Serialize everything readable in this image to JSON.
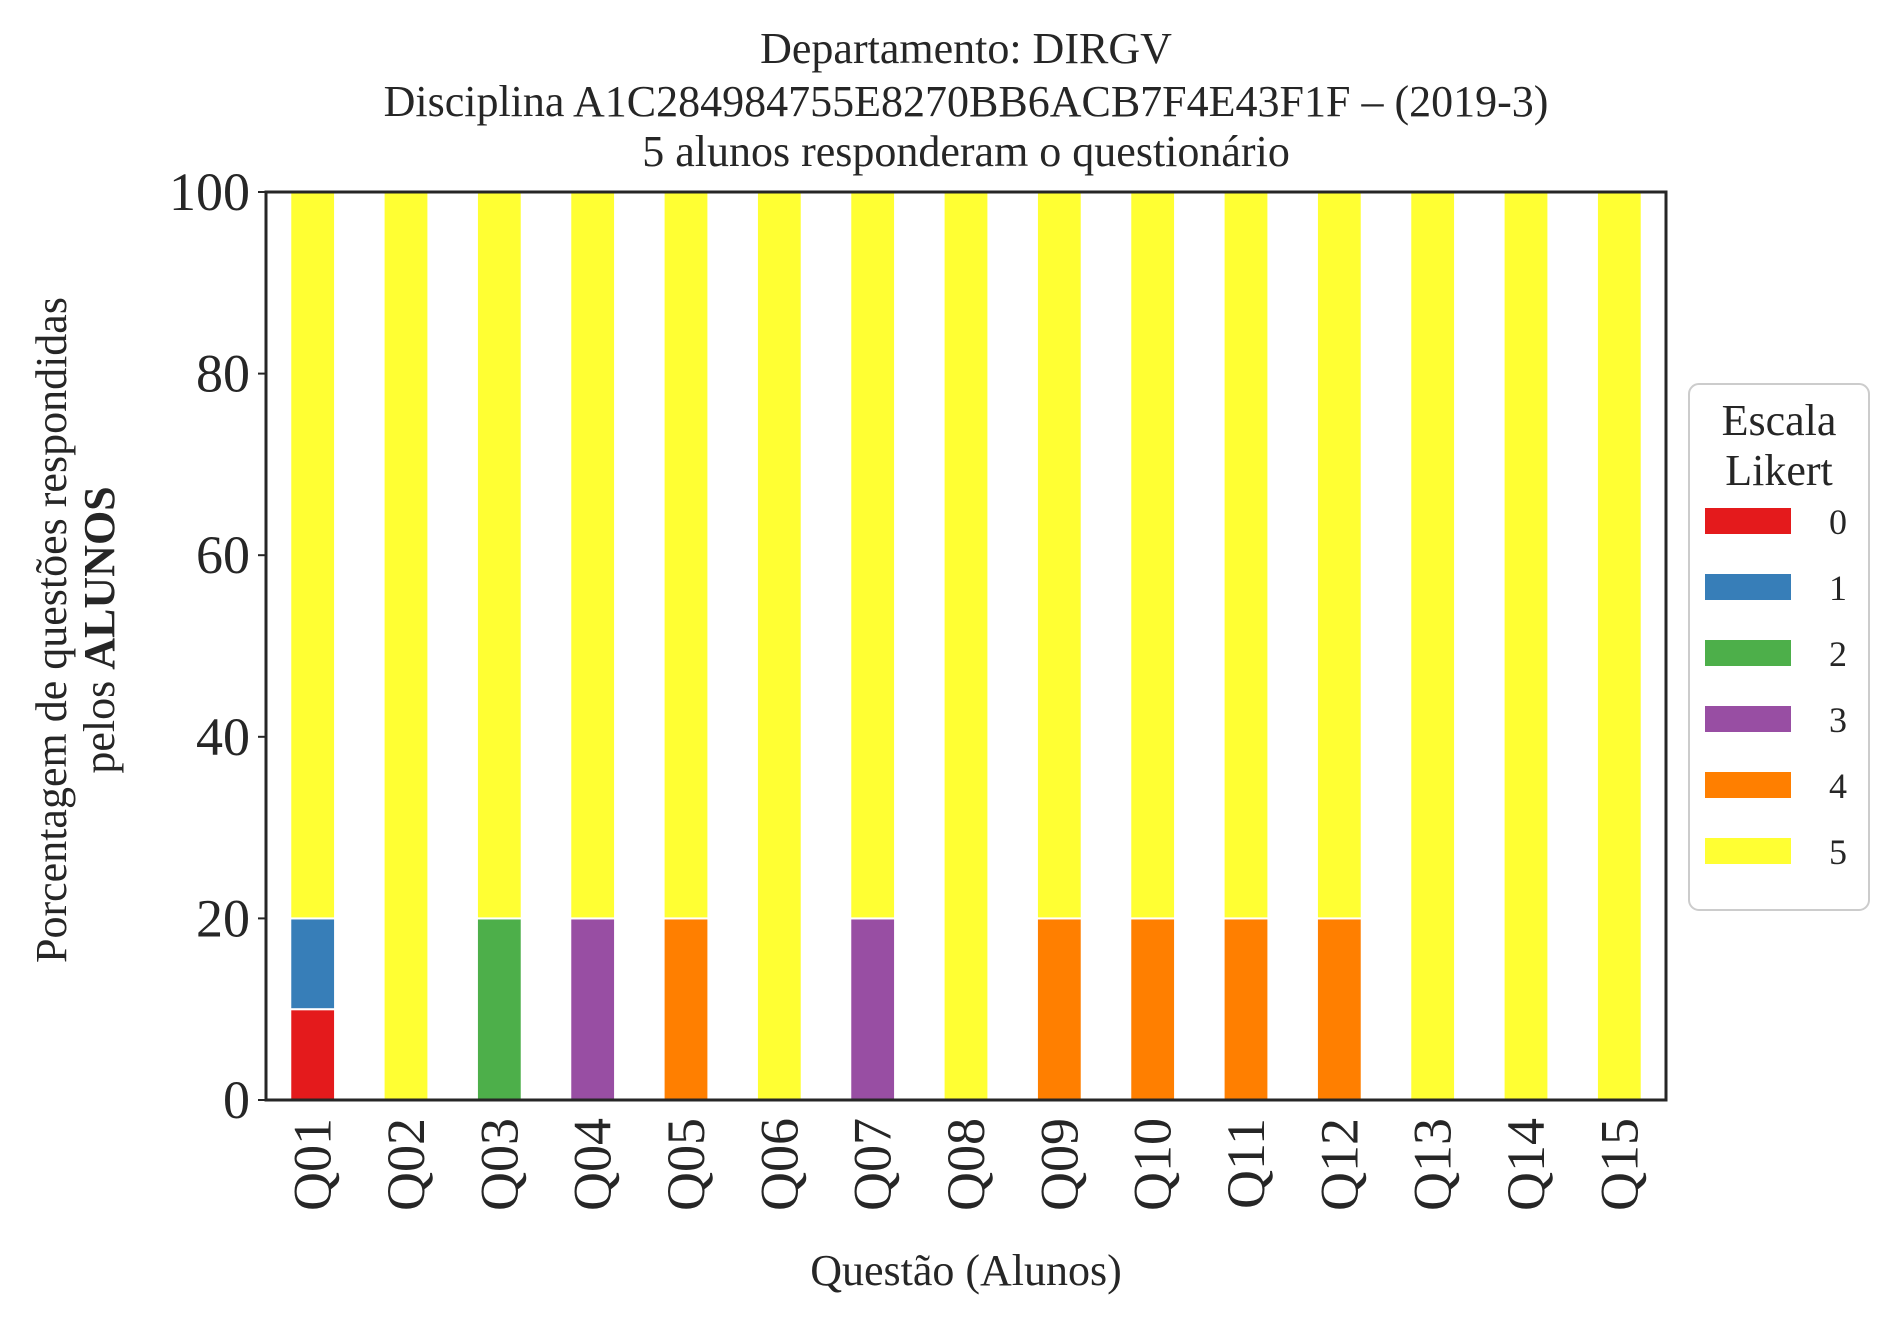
{
  "chart_data": {
    "type": "bar",
    "stacked": true,
    "title": [
      "Departamento: DIRGV",
      "Disciplina A1C284984755E8270BB6ACB7F4E43F1F – (2019-3)",
      "5 alunos responderam o questionário"
    ],
    "xlabel": "Questão (Alunos)",
    "ylabel_line1": "Porcentagem de questões respondidas",
    "ylabel_line2_prefix": "pelos ",
    "ylabel_line2_bold": "ALUNOS",
    "ylim": [
      0,
      100
    ],
    "yticks": [
      "0",
      "20",
      "40",
      "60",
      "80",
      "100"
    ],
    "grid": false,
    "legend_position": "center-right, outside",
    "legend_title": [
      "Escala",
      "Likert"
    ],
    "categories": [
      "Q01",
      "Q02",
      "Q03",
      "Q04",
      "Q05",
      "Q06",
      "Q07",
      "Q08",
      "Q09",
      "Q10",
      "Q11",
      "Q12",
      "Q13",
      "Q14",
      "Q15"
    ],
    "series": [
      {
        "name": "0",
        "color": "#e41a1c",
        "values": [
          10,
          0,
          0,
          0,
          0,
          0,
          0,
          0,
          0,
          0,
          0,
          0,
          0,
          0,
          0
        ]
      },
      {
        "name": "1",
        "color": "#377eb8",
        "values": [
          10,
          0,
          0,
          0,
          0,
          0,
          0,
          0,
          0,
          0,
          0,
          0,
          0,
          0,
          0
        ]
      },
      {
        "name": "2",
        "color": "#4daf4a",
        "values": [
          0,
          0,
          20,
          0,
          0,
          0,
          0,
          0,
          0,
          0,
          0,
          0,
          0,
          0,
          0
        ]
      },
      {
        "name": "3",
        "color": "#984ea3",
        "values": [
          0,
          0,
          0,
          20,
          0,
          0,
          20,
          0,
          0,
          0,
          0,
          0,
          0,
          0,
          0
        ]
      },
      {
        "name": "4",
        "color": "#ff7f00",
        "values": [
          0,
          0,
          0,
          0,
          20,
          0,
          0,
          0,
          20,
          20,
          20,
          20,
          0,
          0,
          0
        ]
      },
      {
        "name": "5",
        "color": "#ffff33",
        "values": [
          80,
          100,
          80,
          80,
          80,
          100,
          80,
          100,
          80,
          80,
          80,
          80,
          100,
          100,
          100
        ]
      }
    ]
  }
}
